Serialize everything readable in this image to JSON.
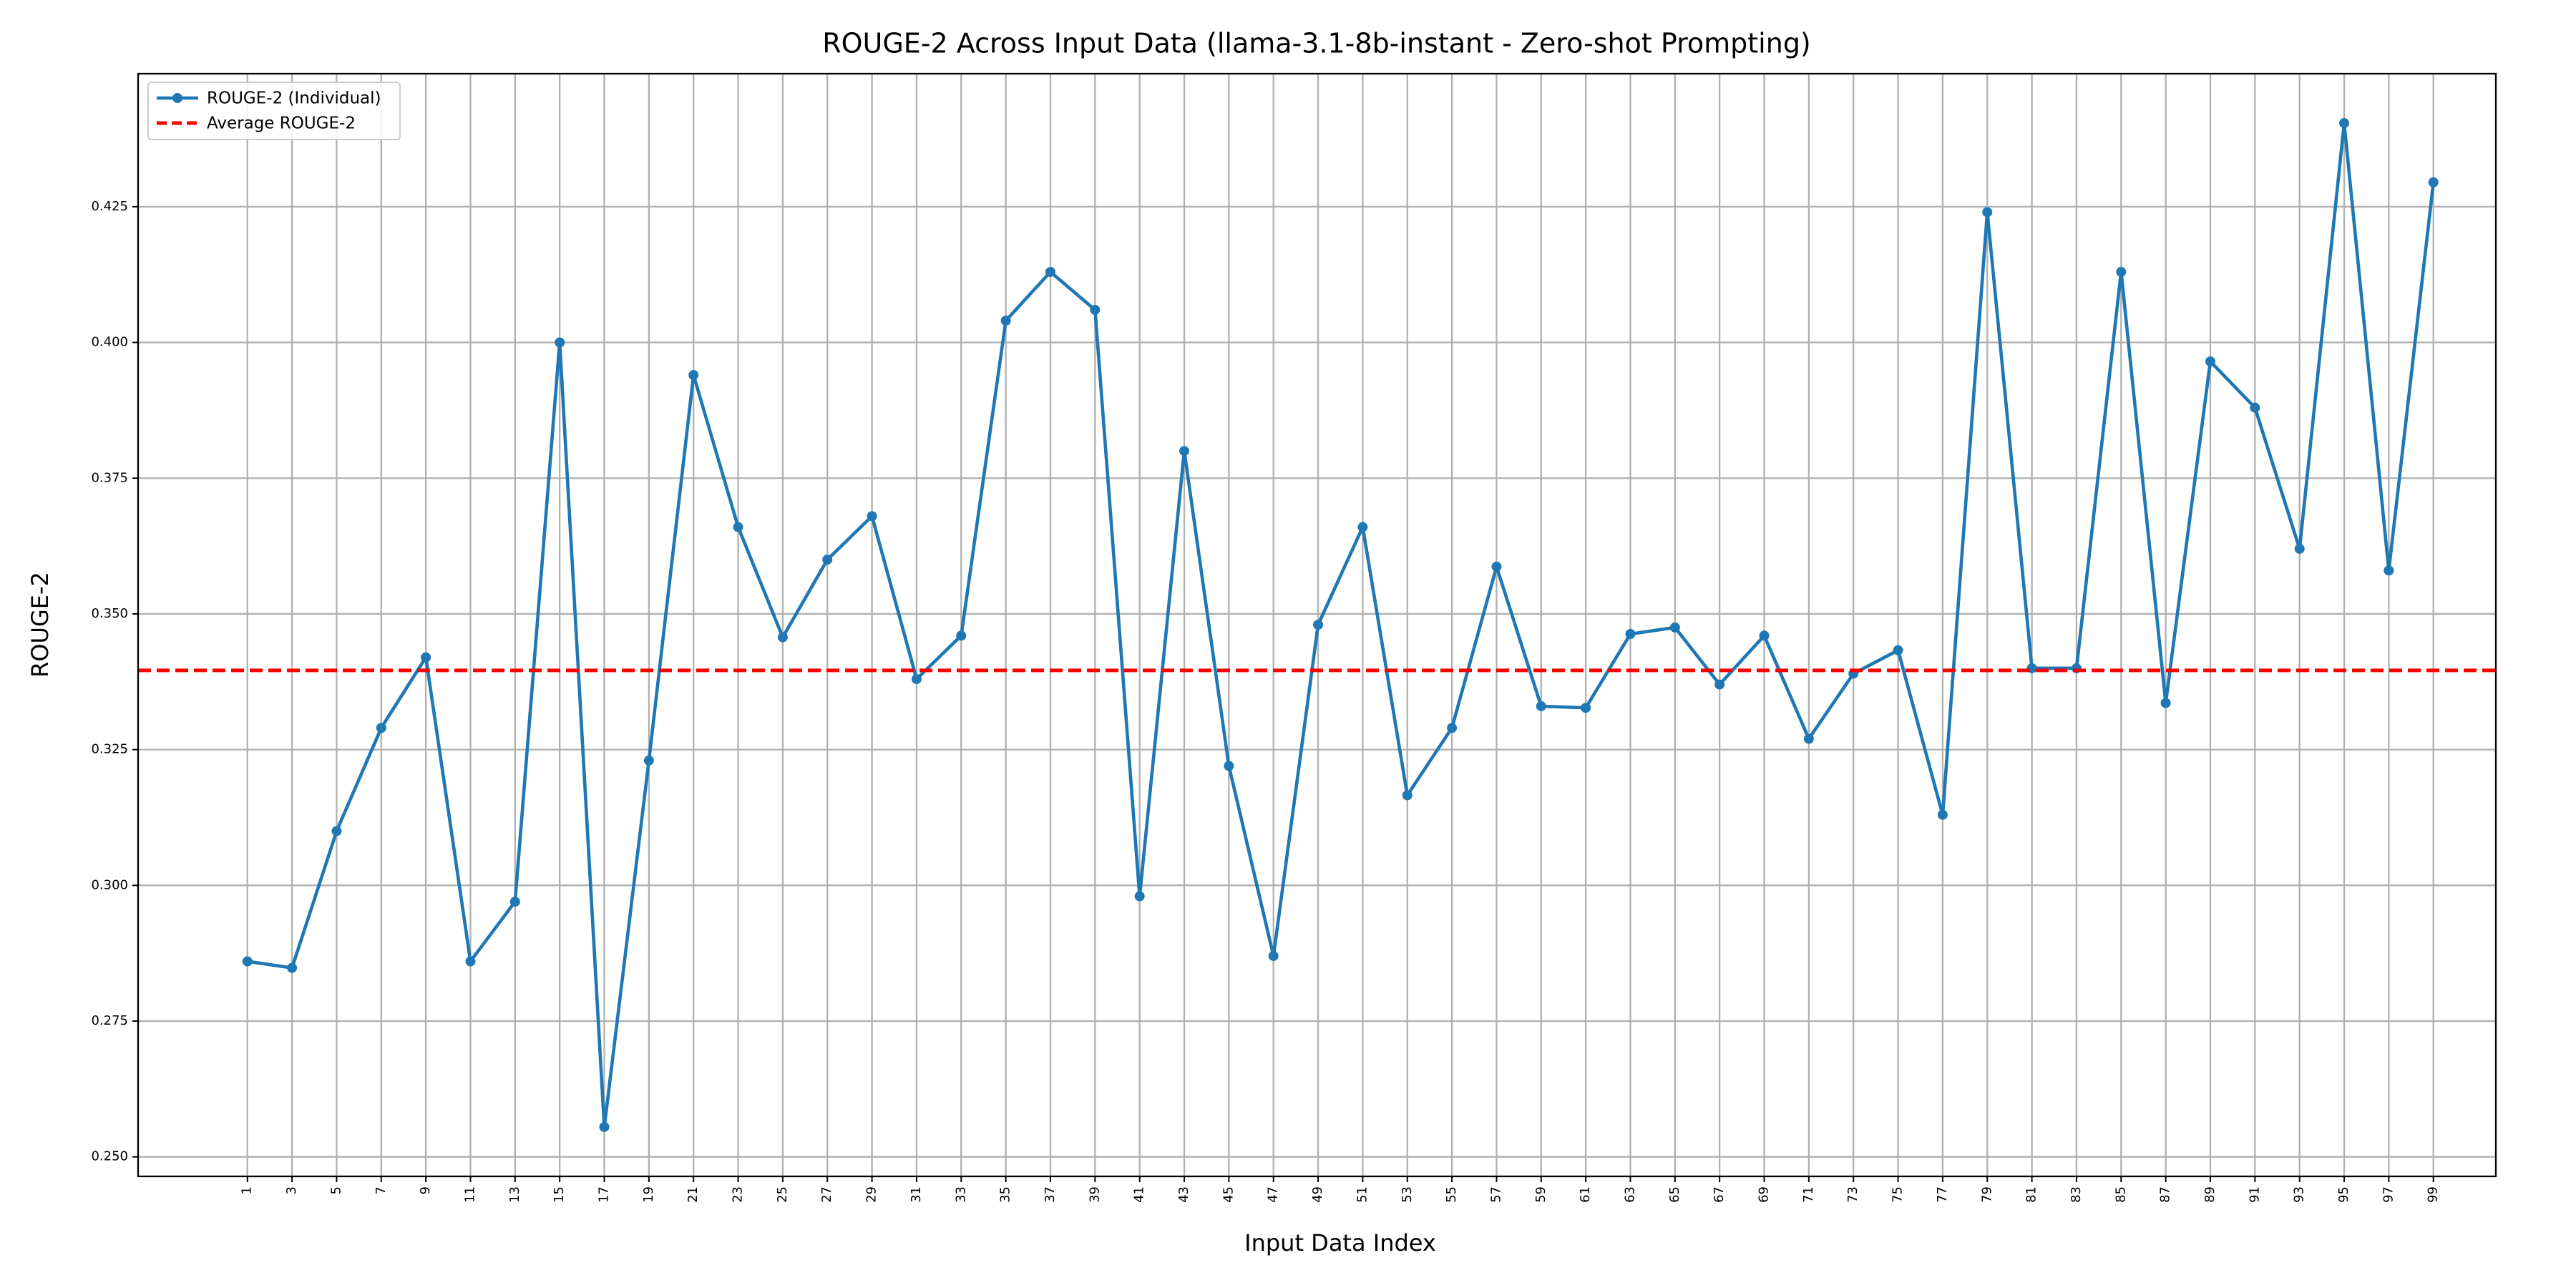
{
  "chart_data": {
    "type": "line",
    "title": "ROUGE-2 Across Input Data (llama-3.1-8b-instant - Zero-shot Prompting)",
    "xlabel": "Input Data Index",
    "ylabel": "ROUGE-2",
    "x": [
      1,
      3,
      5,
      7,
      9,
      11,
      13,
      15,
      17,
      19,
      21,
      23,
      25,
      27,
      29,
      31,
      33,
      35,
      37,
      39,
      41,
      43,
      45,
      47,
      49,
      51,
      53,
      55,
      57,
      59,
      61,
      63,
      65,
      67,
      69,
      71,
      73,
      75,
      77,
      79,
      81,
      83,
      85,
      87,
      89,
      91,
      93,
      95,
      97,
      99
    ],
    "series": [
      {
        "name": "ROUGE-2 (Individual)",
        "color": "#1f77b4",
        "values": [
          0.286,
          0.2848,
          0.31,
          0.329,
          0.342,
          0.286,
          0.297,
          0.4,
          0.2555,
          0.323,
          0.394,
          0.366,
          0.3457,
          0.36,
          0.368,
          0.338,
          0.346,
          0.404,
          0.413,
          0.406,
          0.298,
          0.38,
          0.322,
          0.287,
          0.348,
          0.366,
          0.3166,
          0.329,
          0.3587,
          0.333,
          0.3327,
          0.3463,
          0.3475,
          0.337,
          0.346,
          0.327,
          0.339,
          0.3433,
          0.313,
          0.424,
          0.34,
          0.34,
          0.413,
          0.3336,
          0.3965,
          0.388,
          0.362,
          0.4404,
          0.358,
          0.4295
        ]
      }
    ],
    "average": {
      "name": "Average ROUGE-2",
      "value": 0.3396,
      "color": "#ff0000"
    },
    "xlim": [
      -3.9,
      101.8
    ],
    "xticks": [
      1,
      3,
      5,
      7,
      9,
      11,
      13,
      15,
      17,
      19,
      21,
      23,
      25,
      27,
      29,
      31,
      33,
      35,
      37,
      39,
      41,
      43,
      45,
      47,
      49,
      51,
      53,
      55,
      57,
      59,
      61,
      63,
      65,
      67,
      69,
      71,
      73,
      75,
      77,
      79,
      81,
      83,
      85,
      87,
      89,
      91,
      93,
      95,
      97,
      99
    ],
    "ylim": [
      0.2464,
      0.4495
    ],
    "yticks": [
      {
        "value": 0.25,
        "label": "0.250"
      },
      {
        "value": 0.275,
        "label": "0.275"
      },
      {
        "value": 0.3,
        "label": "0.300"
      },
      {
        "value": 0.325,
        "label": "0.325"
      },
      {
        "value": 0.35,
        "label": "0.350"
      },
      {
        "value": 0.375,
        "label": "0.375"
      },
      {
        "value": 0.4,
        "label": "0.400"
      },
      {
        "value": 0.425,
        "label": "0.425"
      }
    ],
    "grid": true,
    "legend": "upper left"
  }
}
